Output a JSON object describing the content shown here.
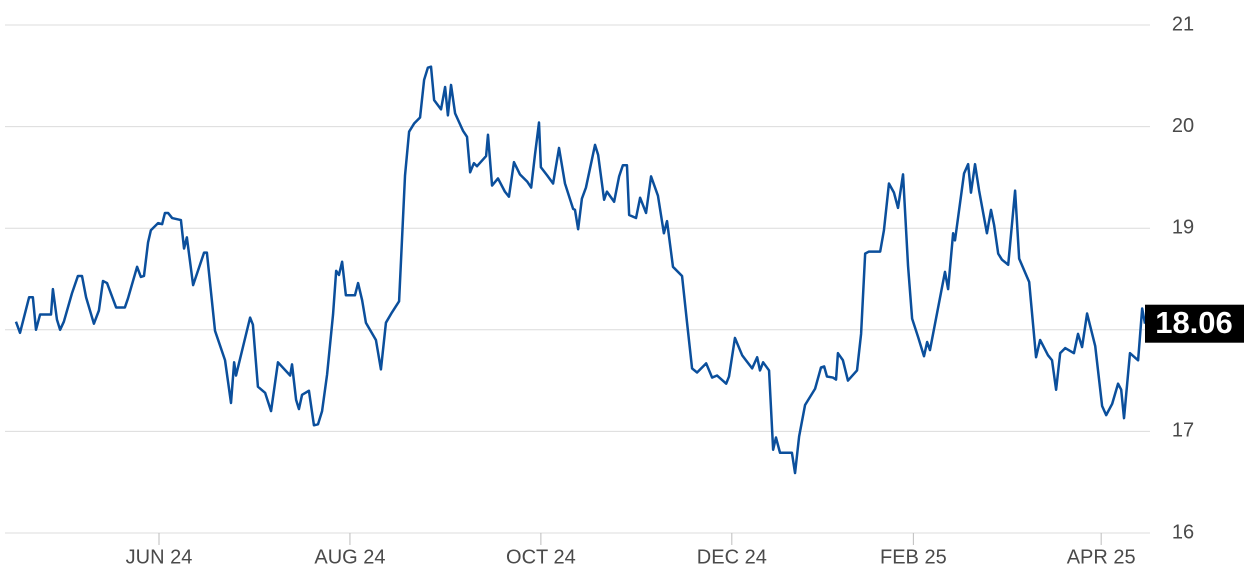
{
  "chart_data": {
    "type": "line",
    "color": "#0b4f9c",
    "grid": true,
    "xlim": [
      -18.2,
      347.6
    ],
    "xticks": [
      {
        "value": 31,
        "label": "JUN 24"
      },
      {
        "value": 92,
        "label": "AUG 24"
      },
      {
        "value": 153,
        "label": "OCT 24"
      },
      {
        "value": 214,
        "label": "DEC 24"
      },
      {
        "value": 272,
        "label": "FEB 25"
      },
      {
        "value": 332,
        "label": "APR 25"
      }
    ],
    "ylim": [
      16,
      21
    ],
    "yticks": [
      16,
      17,
      18,
      19,
      20,
      21
    ],
    "x": [
      -14.7,
      -13.4,
      -10.5,
      -9.3,
      -8.3,
      -7.0,
      -4.5,
      -3.5,
      -2.9,
      -1.6,
      -0.6,
      0.6,
      3.2,
      5.1,
      6.4,
      7.7,
      10.2,
      11.8,
      13.1,
      14.4,
      17.3,
      19.2,
      20.1,
      21.1,
      24.0,
      25.2,
      26.2,
      27.5,
      28.4,
      30.7,
      32.0,
      32.9,
      33.9,
      35.2,
      38.0,
      39.0,
      39.9,
      41.9,
      45.4,
      46.3,
      48.9,
      52.1,
      54.0,
      55.0,
      55.6,
      60.1,
      61.0,
      62.6,
      64.9,
      66.8,
      69.0,
      72.9,
      73.5,
      74.8,
      75.7,
      76.7,
      78.9,
      80.5,
      81.8,
      83.1,
      84.7,
      86.6,
      87.6,
      88.5,
      89.5,
      90.7,
      92.7,
      93.6,
      94.6,
      95.9,
      97.1,
      100.3,
      101.9,
      103.5,
      105.4,
      107.7,
      109.6,
      110.9,
      112.5,
      114.4,
      115.7,
      116.9,
      117.9,
      118.9,
      121.1,
      122.4,
      123.3,
      124.3,
      125.6,
      128.1,
      129.4,
      130.4,
      131.6,
      132.6,
      135.5,
      136.1,
      137.4,
      139.3,
      141.5,
      142.8,
      144.4,
      146.3,
      148.6,
      149.9,
      151.1,
      152.4,
      153.0,
      155.0,
      156.9,
      158.8,
      160.7,
      163.3,
      163.9,
      164.9,
      166.1,
      167.4,
      170.3,
      171.3,
      173.2,
      174.1,
      176.4,
      178.0,
      179.2,
      180.5,
      181.2,
      183.4,
      184.7,
      186.6,
      188.2,
      190.4,
      192.3,
      193.3,
      195.2,
      198.1,
      199.7,
      201.3,
      202.9,
      205.8,
      207.7,
      209.3,
      212.2,
      213.1,
      215.0,
      217.3,
      218.5,
      220.5,
      222.1,
      223.0,
      224.0,
      225.9,
      227.2,
      228.1,
      229.4,
      233.2,
      234.2,
      235.5,
      237.4,
      240.6,
      242.5,
      243.5,
      244.4,
      246.3,
      247.3,
      247.9,
      249.5,
      251.1,
      254.0,
      255.3,
      256.6,
      257.8,
      261.4,
      262.6,
      264.2,
      265.8,
      267.1,
      268.7,
      270.3,
      271.6,
      273.5,
      275.4,
      276.4,
      277.3,
      282.1,
      283.1,
      284.7,
      285.3,
      288.2,
      289.5,
      290.4,
      291.7,
      293.0,
      295.5,
      296.8,
      297.8,
      299.1,
      300.3,
      302.3,
      304.5,
      305.8,
      309.0,
      311.2,
      312.5,
      315.0,
      316.3,
      317.6,
      318.9,
      320.5,
      323.3,
      324.6,
      325.9,
      327.5,
      330.1,
      332.3,
      333.6,
      335.5,
      337.4,
      338.4,
      339.3,
      341.2,
      343.8,
      345.1,
      346.0
    ],
    "values": [
      18.08,
      17.97,
      18.32,
      18.32,
      18.0,
      18.15,
      18.15,
      18.15,
      18.4,
      18.1,
      18.0,
      18.08,
      18.36,
      18.53,
      18.53,
      18.32,
      18.06,
      18.19,
      18.48,
      18.46,
      18.22,
      18.22,
      18.22,
      18.31,
      18.62,
      18.52,
      18.53,
      18.86,
      18.98,
      19.05,
      19.04,
      19.15,
      19.15,
      19.1,
      19.08,
      18.8,
      18.91,
      18.44,
      18.76,
      18.76,
      17.99,
      17.7,
      17.28,
      17.68,
      17.55,
      18.12,
      18.05,
      17.44,
      17.38,
      17.2,
      17.68,
      17.55,
      17.66,
      17.31,
      17.22,
      17.36,
      17.4,
      17.06,
      17.07,
      17.2,
      17.56,
      18.15,
      18.58,
      18.54,
      18.67,
      18.34,
      18.34,
      18.34,
      18.46,
      18.29,
      18.07,
      17.9,
      17.61,
      18.07,
      18.17,
      18.28,
      19.52,
      19.95,
      20.03,
      20.09,
      20.46,
      20.58,
      20.59,
      20.26,
      20.17,
      20.39,
      20.11,
      20.41,
      20.13,
      19.96,
      19.9,
      19.55,
      19.64,
      19.61,
      19.71,
      19.92,
      19.42,
      19.49,
      19.36,
      19.31,
      19.65,
      19.53,
      19.46,
      19.4,
      19.72,
      20.04,
      19.6,
      19.52,
      19.44,
      19.79,
      19.44,
      19.19,
      19.18,
      18.99,
      19.29,
      19.4,
      19.82,
      19.72,
      19.28,
      19.36,
      19.26,
      19.51,
      19.62,
      19.62,
      19.13,
      19.1,
      19.3,
      19.15,
      19.51,
      19.32,
      18.95,
      19.07,
      18.62,
      18.53,
      18.07,
      17.62,
      17.58,
      17.67,
      17.53,
      17.55,
      17.47,
      17.54,
      17.92,
      17.75,
      17.7,
      17.62,
      17.73,
      17.6,
      17.68,
      17.6,
      16.82,
      16.94,
      16.79,
      16.79,
      16.59,
      16.95,
      17.26,
      17.42,
      17.63,
      17.64,
      17.54,
      17.53,
      17.51,
      17.77,
      17.7,
      17.5,
      17.6,
      17.96,
      18.75,
      18.77,
      18.77,
      18.98,
      19.44,
      19.35,
      19.2,
      19.53,
      18.63,
      18.11,
      17.93,
      17.74,
      17.88,
      17.8,
      18.57,
      18.4,
      18.95,
      18.88,
      19.54,
      19.63,
      19.35,
      19.63,
      19.37,
      18.95,
      19.18,
      19.03,
      18.75,
      18.69,
      18.64,
      19.37,
      18.7,
      18.47,
      17.73,
      17.9,
      17.75,
      17.7,
      17.41,
      17.77,
      17.82,
      17.77,
      17.96,
      17.83,
      18.16,
      17.84,
      17.25,
      17.16,
      17.27,
      17.47,
      17.41,
      17.13,
      17.77,
      17.7,
      18.21,
      18.06
    ]
  }
}
